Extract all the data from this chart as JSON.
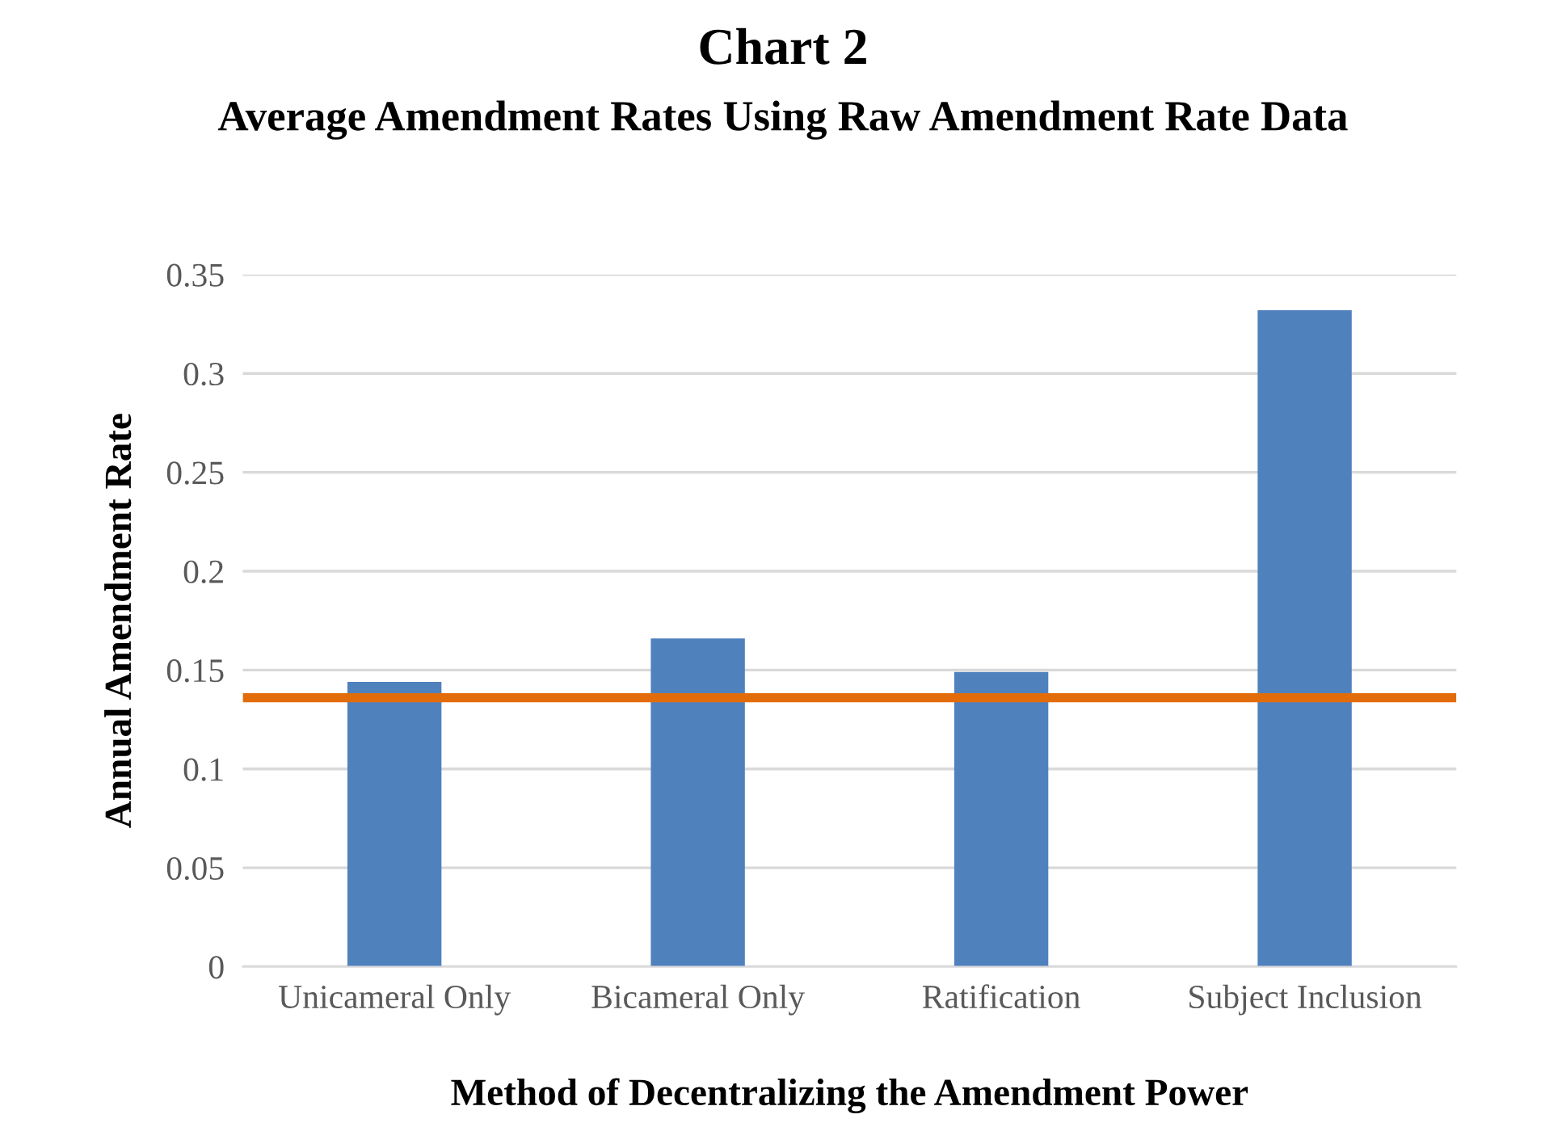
{
  "chart_data": {
    "type": "bar",
    "title": "Chart 2",
    "subtitle": "Average Amendment Rates Using Raw Amendment Rate Data",
    "xlabel": "Method of Decentralizing the Amendment Power",
    "ylabel": "Annual Amendment Rate",
    "categories": [
      "Unicameral Only",
      "Bicameral Only",
      "Ratification",
      "Subject Inclusion"
    ],
    "values": [
      0.144,
      0.166,
      0.149,
      0.332
    ],
    "color": "#4f81bd",
    "ylim": [
      0,
      0.35
    ],
    "yticks": [
      0,
      0.05,
      0.1,
      0.15,
      0.2,
      0.25,
      0.3,
      0.35
    ],
    "grid": "y",
    "ref_lines": [
      {
        "axis": "y",
        "value": 0.136,
        "color": "#e36c0a",
        "line_style": "solid"
      }
    ]
  }
}
